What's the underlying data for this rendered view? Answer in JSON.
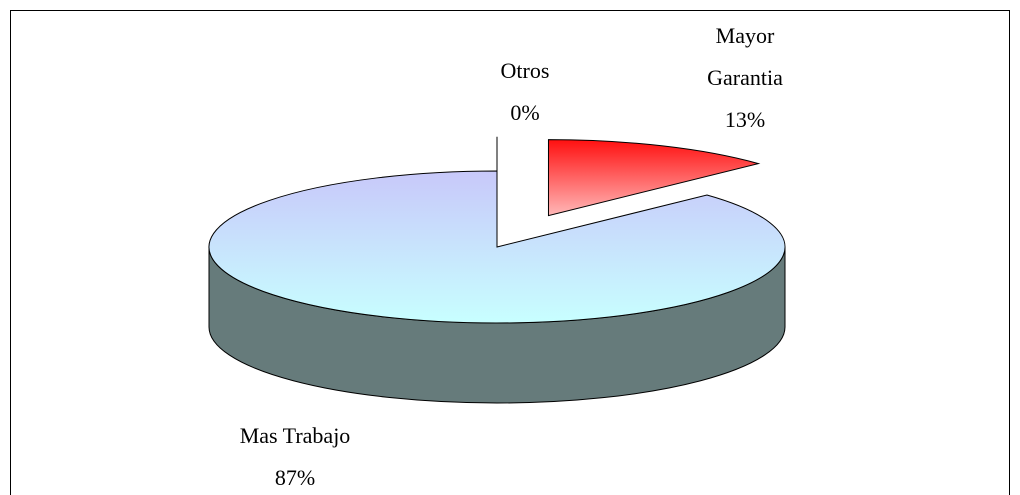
{
  "chart_data": {
    "type": "pie",
    "categories": [
      "Mayor Garantia",
      "Mas Trabajo",
      "Otros"
    ],
    "values": [
      13,
      87,
      0
    ],
    "value_labels": [
      "13%",
      "87%",
      "0%"
    ],
    "colors": [
      [
        "#ff1010",
        "#ffb8b8"
      ],
      [
        "#c8c8fa",
        "#c8ffff"
      ],
      [
        "#000000",
        "#000000"
      ]
    ],
    "side_color": "#667b7b"
  }
}
